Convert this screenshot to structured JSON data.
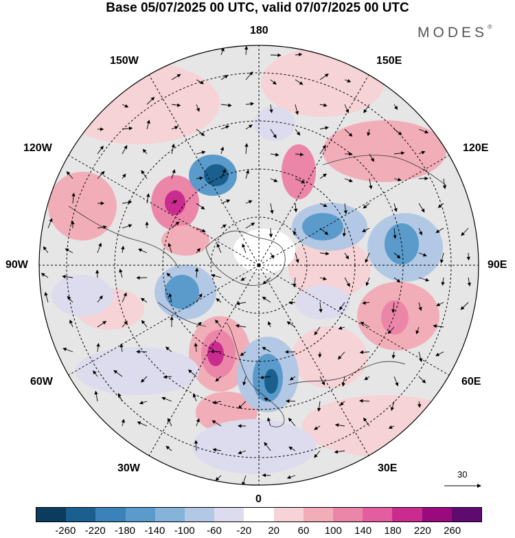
{
  "title": "Base 05/07/2025 00 UTC, valid 07/07/2025 00 UTC",
  "logo": "MODES",
  "logo_mark": "®",
  "longitude_labels": {
    "top": "180",
    "bottom": "0",
    "left": "90W",
    "right": "90E",
    "upper_left_1": "150W",
    "upper_left_2": "120W",
    "upper_right_1": "150E",
    "upper_right_2": "120E",
    "lower_left_1": "60W",
    "lower_left_2": "30W",
    "lower_right_1": "60E",
    "lower_right_2": "30E"
  },
  "reference_vector": "30",
  "colorbar": {
    "colors": [
      "#0b3c5d",
      "#1a5f8e",
      "#3a82b8",
      "#5b9bcb",
      "#86b3d9",
      "#b3c8e4",
      "#dcdcee",
      "#ffffff",
      "#f6d3d6",
      "#f2aeb8",
      "#ec86a9",
      "#e45e9f",
      "#c92b8f",
      "#9b0a7d",
      "#5e0a6e"
    ],
    "ticks": [
      "-260",
      "-220",
      "-180",
      "-140",
      "-100",
      "-60",
      "-20",
      "20",
      "60",
      "100",
      "140",
      "180",
      "220",
      "260"
    ]
  },
  "colors": {
    "neutral": "#e6e6e6",
    "positive_light": "#f6d3d6",
    "positive_mid": "#f2aeb8",
    "positive_strong": "#ec86a9",
    "positive_peak": "#c92b8f",
    "negative_light": "#dcdcee",
    "negative_mid": "#b3c8e4",
    "negative_strong": "#5b9bcb",
    "negative_peak": "#1a5f8e"
  }
}
